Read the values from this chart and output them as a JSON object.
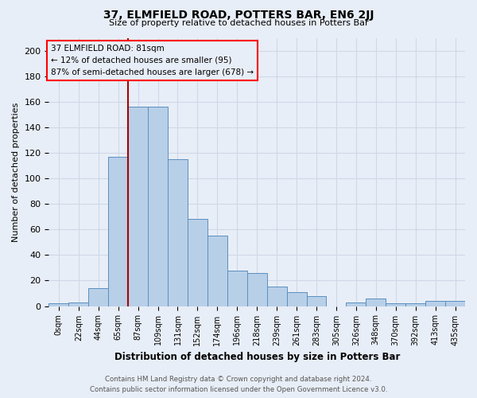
{
  "title": "37, ELMFIELD ROAD, POTTERS BAR, EN6 2JJ",
  "subtitle": "Size of property relative to detached houses in Potters Bar",
  "xlabel": "Distribution of detached houses by size in Potters Bar",
  "ylabel": "Number of detached properties",
  "bin_labels": [
    "0sqm",
    "22sqm",
    "44sqm",
    "65sqm",
    "87sqm",
    "109sqm",
    "131sqm",
    "152sqm",
    "174sqm",
    "196sqm",
    "218sqm",
    "239sqm",
    "261sqm",
    "283sqm",
    "305sqm",
    "326sqm",
    "348sqm",
    "370sqm",
    "392sqm",
    "413sqm",
    "435sqm"
  ],
  "bar_values": [
    2,
    3,
    14,
    117,
    156,
    156,
    115,
    68,
    55,
    28,
    26,
    15,
    11,
    8,
    0,
    3,
    6,
    2,
    2,
    4,
    4
  ],
  "bar_color": "#b8cfe8",
  "bar_edge_color": "#5a8fc0",
  "grid_color": "#d0d8e8",
  "bg_color": "#e8eef7",
  "red_line_index": 4,
  "annotation_text": "37 ELMFIELD ROAD: 81sqm\n← 12% of detached houses are smaller (95)\n87% of semi-detached houses are larger (678) →",
  "footer_line1": "Contains HM Land Registry data © Crown copyright and database right 2024.",
  "footer_line2": "Contains public sector information licensed under the Open Government Licence v3.0.",
  "ylim": [
    0,
    210
  ],
  "yticks": [
    0,
    20,
    40,
    60,
    80,
    100,
    120,
    140,
    160,
    180,
    200
  ]
}
